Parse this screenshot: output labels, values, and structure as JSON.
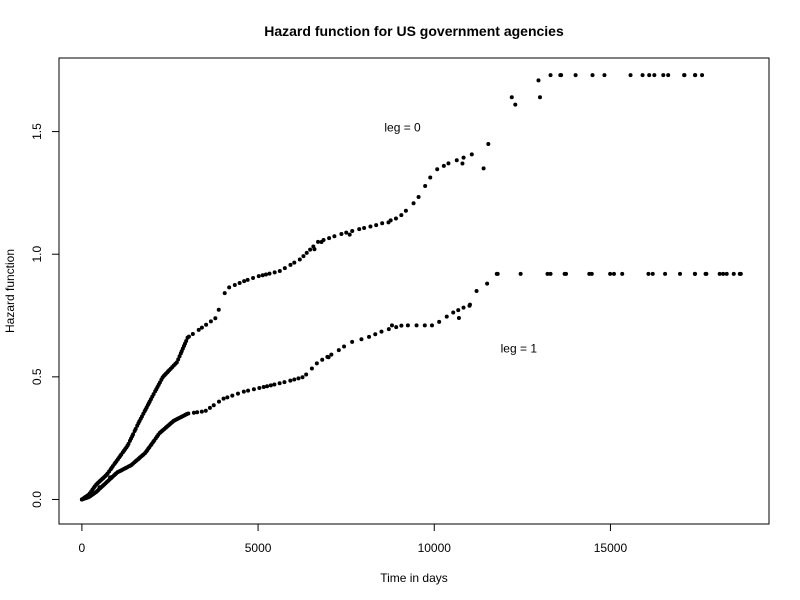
{
  "chart_data": {
    "type": "scatter",
    "title": "Hazard function for US government agencies",
    "xlabel": "Time in days",
    "ylabel": "Hazard function",
    "xlim": [
      -650,
      19500
    ],
    "ylim": [
      -0.1,
      1.8
    ],
    "x_ticks": [
      0,
      5000,
      10000,
      15000
    ],
    "x_tick_labels": [
      "0",
      "5000",
      "10000",
      "15000"
    ],
    "y_ticks": [
      0.0,
      0.5,
      1.0,
      1.5
    ],
    "y_tick_labels": [
      "0.0",
      "0.5",
      "1.0",
      "1.5"
    ],
    "grid": false,
    "annotations": [
      {
        "text": "leg = 0",
        "x": 9100,
        "y": 1.5
      },
      {
        "text": "leg = 1",
        "x": 12400,
        "y": 0.6
      }
    ],
    "series": [
      {
        "name": "leg = 0",
        "curve_points": [
          [
            0,
            0.0
          ],
          [
            100,
            0.01
          ],
          [
            200,
            0.02
          ],
          [
            400,
            0.06
          ],
          [
            700,
            0.1
          ],
          [
            1000,
            0.16
          ],
          [
            1300,
            0.22
          ],
          [
            1600,
            0.31
          ],
          [
            2000,
            0.42
          ],
          [
            2300,
            0.5
          ],
          [
            2700,
            0.56
          ],
          [
            3000,
            0.66
          ],
          [
            3400,
            0.7
          ],
          [
            3800,
            0.74
          ],
          [
            4100,
            0.86
          ],
          [
            4600,
            0.89
          ],
          [
            5000,
            0.91
          ],
          [
            5600,
            0.93
          ],
          [
            6200,
            0.98
          ],
          [
            6700,
            1.05
          ],
          [
            7300,
            1.08
          ],
          [
            7800,
            1.1
          ],
          [
            8400,
            1.12
          ],
          [
            9000,
            1.15
          ],
          [
            9500,
            1.22
          ],
          [
            10000,
            1.34
          ],
          [
            10400,
            1.37
          ],
          [
            11300,
            1.42
          ],
          [
            11700,
            1.47
          ],
          [
            12100,
            1.58
          ],
          [
            12500,
            1.64
          ],
          [
            13100,
            1.73
          ],
          [
            14000,
            1.73
          ],
          [
            17700,
            1.73
          ]
        ],
        "extra_points": [
          [
            6600,
            1.02
          ],
          [
            6800,
            1.05
          ],
          [
            7600,
            1.08
          ],
          [
            8700,
            1.13
          ],
          [
            10800,
            1.37
          ],
          [
            11400,
            1.35
          ],
          [
            12200,
            1.64
          ],
          [
            13000,
            1.64
          ],
          [
            13300,
            1.73
          ],
          [
            13600,
            1.73
          ],
          [
            16100,
            1.73
          ],
          [
            16500,
            1.73
          ],
          [
            17100,
            1.73
          ],
          [
            17400,
            1.73
          ],
          [
            17600,
            1.73
          ]
        ]
      },
      {
        "name": "leg = 1",
        "curve_points": [
          [
            0,
            0.0
          ],
          [
            200,
            0.01
          ],
          [
            400,
            0.03
          ],
          [
            700,
            0.07
          ],
          [
            1000,
            0.11
          ],
          [
            1400,
            0.14
          ],
          [
            1800,
            0.19
          ],
          [
            2200,
            0.27
          ],
          [
            2600,
            0.32
          ],
          [
            3000,
            0.35
          ],
          [
            3500,
            0.36
          ],
          [
            4000,
            0.41
          ],
          [
            4600,
            0.44
          ],
          [
            5200,
            0.46
          ],
          [
            5800,
            0.48
          ],
          [
            6300,
            0.5
          ],
          [
            6700,
            0.56
          ],
          [
            7200,
            0.6
          ],
          [
            7600,
            0.64
          ],
          [
            8100,
            0.66
          ],
          [
            8600,
            0.69
          ],
          [
            9100,
            0.71
          ],
          [
            10000,
            0.71
          ],
          [
            10500,
            0.76
          ],
          [
            11100,
            0.8
          ],
          [
            11500,
            0.92
          ],
          [
            12200,
            0.92
          ],
          [
            18800,
            0.92
          ]
        ],
        "extra_points": [
          [
            500,
            0.05
          ],
          [
            800,
            0.09
          ],
          [
            7000,
            0.58
          ],
          [
            8800,
            0.71
          ],
          [
            10700,
            0.74
          ],
          [
            11000,
            0.79
          ],
          [
            11200,
            0.85
          ],
          [
            11500,
            0.88
          ],
          [
            11800,
            0.92
          ],
          [
            13300,
            0.92
          ],
          [
            13700,
            0.92
          ],
          [
            14400,
            0.92
          ],
          [
            15100,
            0.92
          ],
          [
            16200,
            0.92
          ],
          [
            17400,
            0.92
          ],
          [
            17700,
            0.92
          ],
          [
            18100,
            0.92
          ],
          [
            18300,
            0.92
          ],
          [
            18500,
            0.92
          ],
          [
            18700,
            0.92
          ]
        ]
      }
    ]
  }
}
